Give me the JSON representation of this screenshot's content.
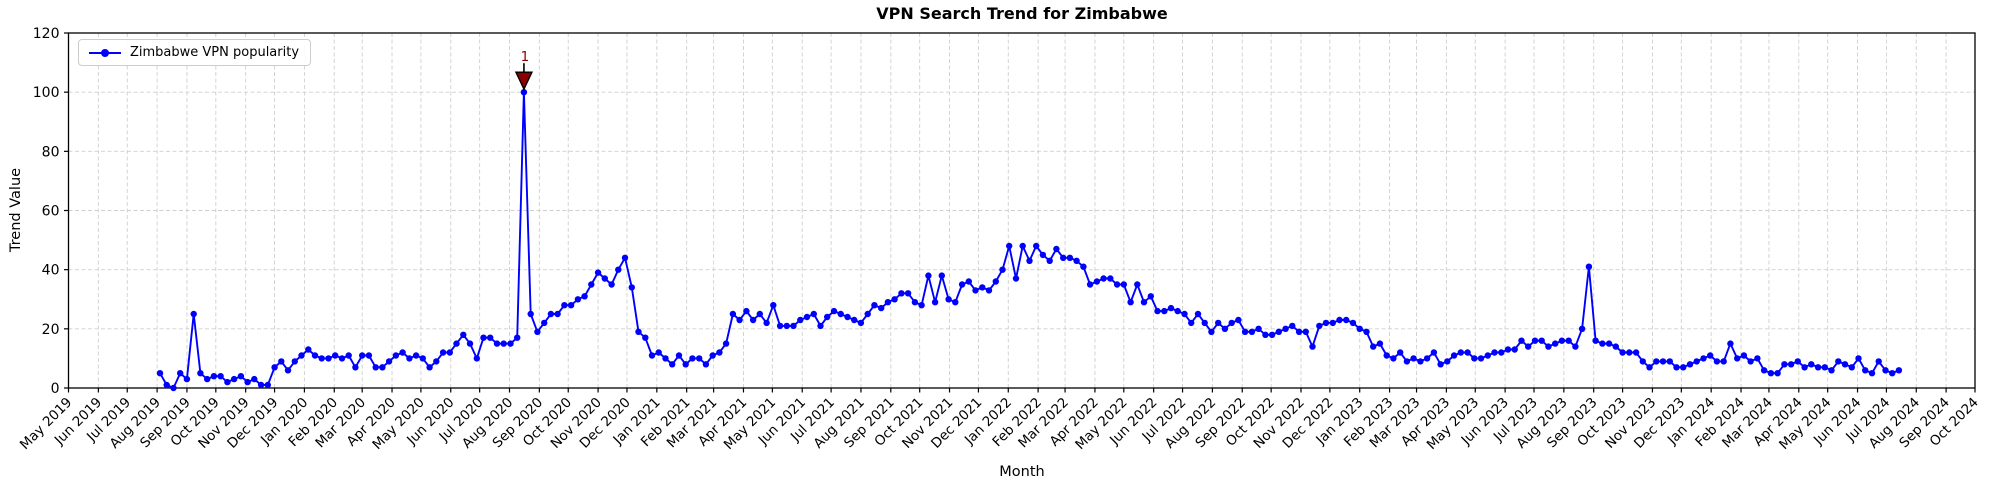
{
  "title": "VPN Search Trend for Zimbabwe",
  "legend": {
    "label": "Zimbabwe VPN popularity"
  },
  "axes": {
    "xlabel": "Month",
    "ylabel": "Trend Value",
    "y_ticks": [
      0,
      20,
      40,
      60,
      80,
      100,
      120
    ],
    "ylim": [
      0,
      120
    ]
  },
  "colors": {
    "line": "#0000ff",
    "grid": "#cfcfcf",
    "spine": "#000000",
    "annotation": "#8b0000",
    "background": "#ffffff"
  },
  "chart_data": {
    "type": "line",
    "title": "VPN Search Trend for Zimbabwe",
    "xlabel": "Month",
    "ylabel": "Trend Value",
    "ylim": [
      0,
      120
    ],
    "grid": true,
    "legend_position": "upper-left",
    "x_axis_start": "2019-05-01",
    "x_axis_end": "2024-10-01",
    "x_tick_labels": [
      "May 2019",
      "Jun 2019",
      "Jul 2019",
      "Aug 2019",
      "Sep 2019",
      "Oct 2019",
      "Nov 2019",
      "Dec 2019",
      "Jan 2020",
      "Feb 2020",
      "Mar 2020",
      "Apr 2020",
      "May 2020",
      "Jun 2020",
      "Jul 2020",
      "Aug 2020",
      "Sep 2020",
      "Oct 2020",
      "Nov 2020",
      "Dec 2020",
      "Jan 2021",
      "Feb 2021",
      "Mar 2021",
      "Apr 2021",
      "May 2021",
      "Jun 2021",
      "Jul 2021",
      "Aug 2021",
      "Sep 2021",
      "Oct 2021",
      "Nov 2021",
      "Dec 2021",
      "Jan 2022",
      "Feb 2022",
      "Mar 2022",
      "Apr 2022",
      "May 2022",
      "Jun 2022",
      "Jul 2022",
      "Aug 2022",
      "Sep 2022",
      "Oct 2022",
      "Nov 2022",
      "Dec 2022",
      "Jan 2023",
      "Feb 2023",
      "Mar 2023",
      "Apr 2023",
      "May 2023",
      "Jun 2023",
      "Jul 2023",
      "Aug 2023",
      "Sep 2023",
      "Oct 2023",
      "Nov 2023",
      "Dec 2023",
      "Jan 2024",
      "Feb 2024",
      "Mar 2024",
      "Apr 2024",
      "May 2024",
      "Jun 2024",
      "Jul 2024",
      "Aug 2024",
      "Sep 2024",
      "Oct 2024"
    ],
    "series": [
      {
        "name": "Zimbabwe VPN popularity",
        "color": "#0000ff",
        "x_start_date": "2019-08-04",
        "x_interval_days": 7,
        "values": [
          5,
          1,
          0,
          5,
          3,
          25,
          5,
          3,
          4,
          4,
          2,
          3,
          4,
          2,
          3,
          1,
          1,
          7,
          9,
          6,
          9,
          11,
          13,
          11,
          10,
          10,
          11,
          10,
          11,
          7,
          11,
          11,
          7,
          7,
          9,
          11,
          12,
          10,
          11,
          10,
          7,
          9,
          12,
          12,
          15,
          18,
          15,
          10,
          17,
          17,
          15,
          15,
          15,
          17,
          100,
          25,
          19,
          22,
          25,
          25,
          28,
          28,
          30,
          31,
          35,
          39,
          37,
          35,
          40,
          44,
          34,
          19,
          17,
          11,
          12,
          10,
          8,
          11,
          8,
          10,
          10,
          8,
          11,
          12,
          15,
          25,
          23,
          26,
          23,
          25,
          22,
          28,
          21,
          21,
          21,
          23,
          24,
          25,
          21,
          24,
          26,
          25,
          24,
          23,
          22,
          25,
          28,
          27,
          29,
          30,
          32,
          32,
          29,
          28,
          38,
          29,
          38,
          30,
          29,
          35,
          36,
          33,
          34,
          33,
          36,
          40,
          48,
          37,
          48,
          43,
          48,
          45,
          43,
          47,
          44,
          44,
          43,
          41,
          35,
          36,
          37,
          37,
          35,
          35,
          29,
          35,
          29,
          31,
          26,
          26,
          27,
          26,
          25,
          22,
          25,
          22,
          19,
          22,
          20,
          22,
          23,
          19,
          19,
          20,
          18,
          18,
          19,
          20,
          21,
          19,
          19,
          14,
          21,
          22,
          22,
          23,
          23,
          22,
          20,
          19,
          14,
          15,
          11,
          10,
          12,
          9,
          10,
          9,
          10,
          12,
          8,
          9,
          11,
          12,
          12,
          10,
          10,
          11,
          12,
          12,
          13,
          13,
          16,
          14,
          16,
          16,
          14,
          15,
          16,
          16,
          14,
          20,
          41,
          16,
          15,
          15,
          14,
          12,
          12,
          12,
          9,
          7,
          9,
          9,
          9,
          7,
          7,
          8,
          9,
          10,
          11,
          9,
          9,
          15,
          10,
          11,
          9,
          10,
          6,
          5,
          5,
          8,
          8,
          9,
          7,
          8,
          7,
          7,
          6,
          9,
          8,
          7,
          10,
          6,
          5,
          9,
          6,
          5,
          6
        ]
      }
    ],
    "annotations": [
      {
        "text": "1",
        "value": 100,
        "date": "2020-08-16",
        "marker": "triangle-down",
        "color": "#8b0000"
      }
    ]
  }
}
